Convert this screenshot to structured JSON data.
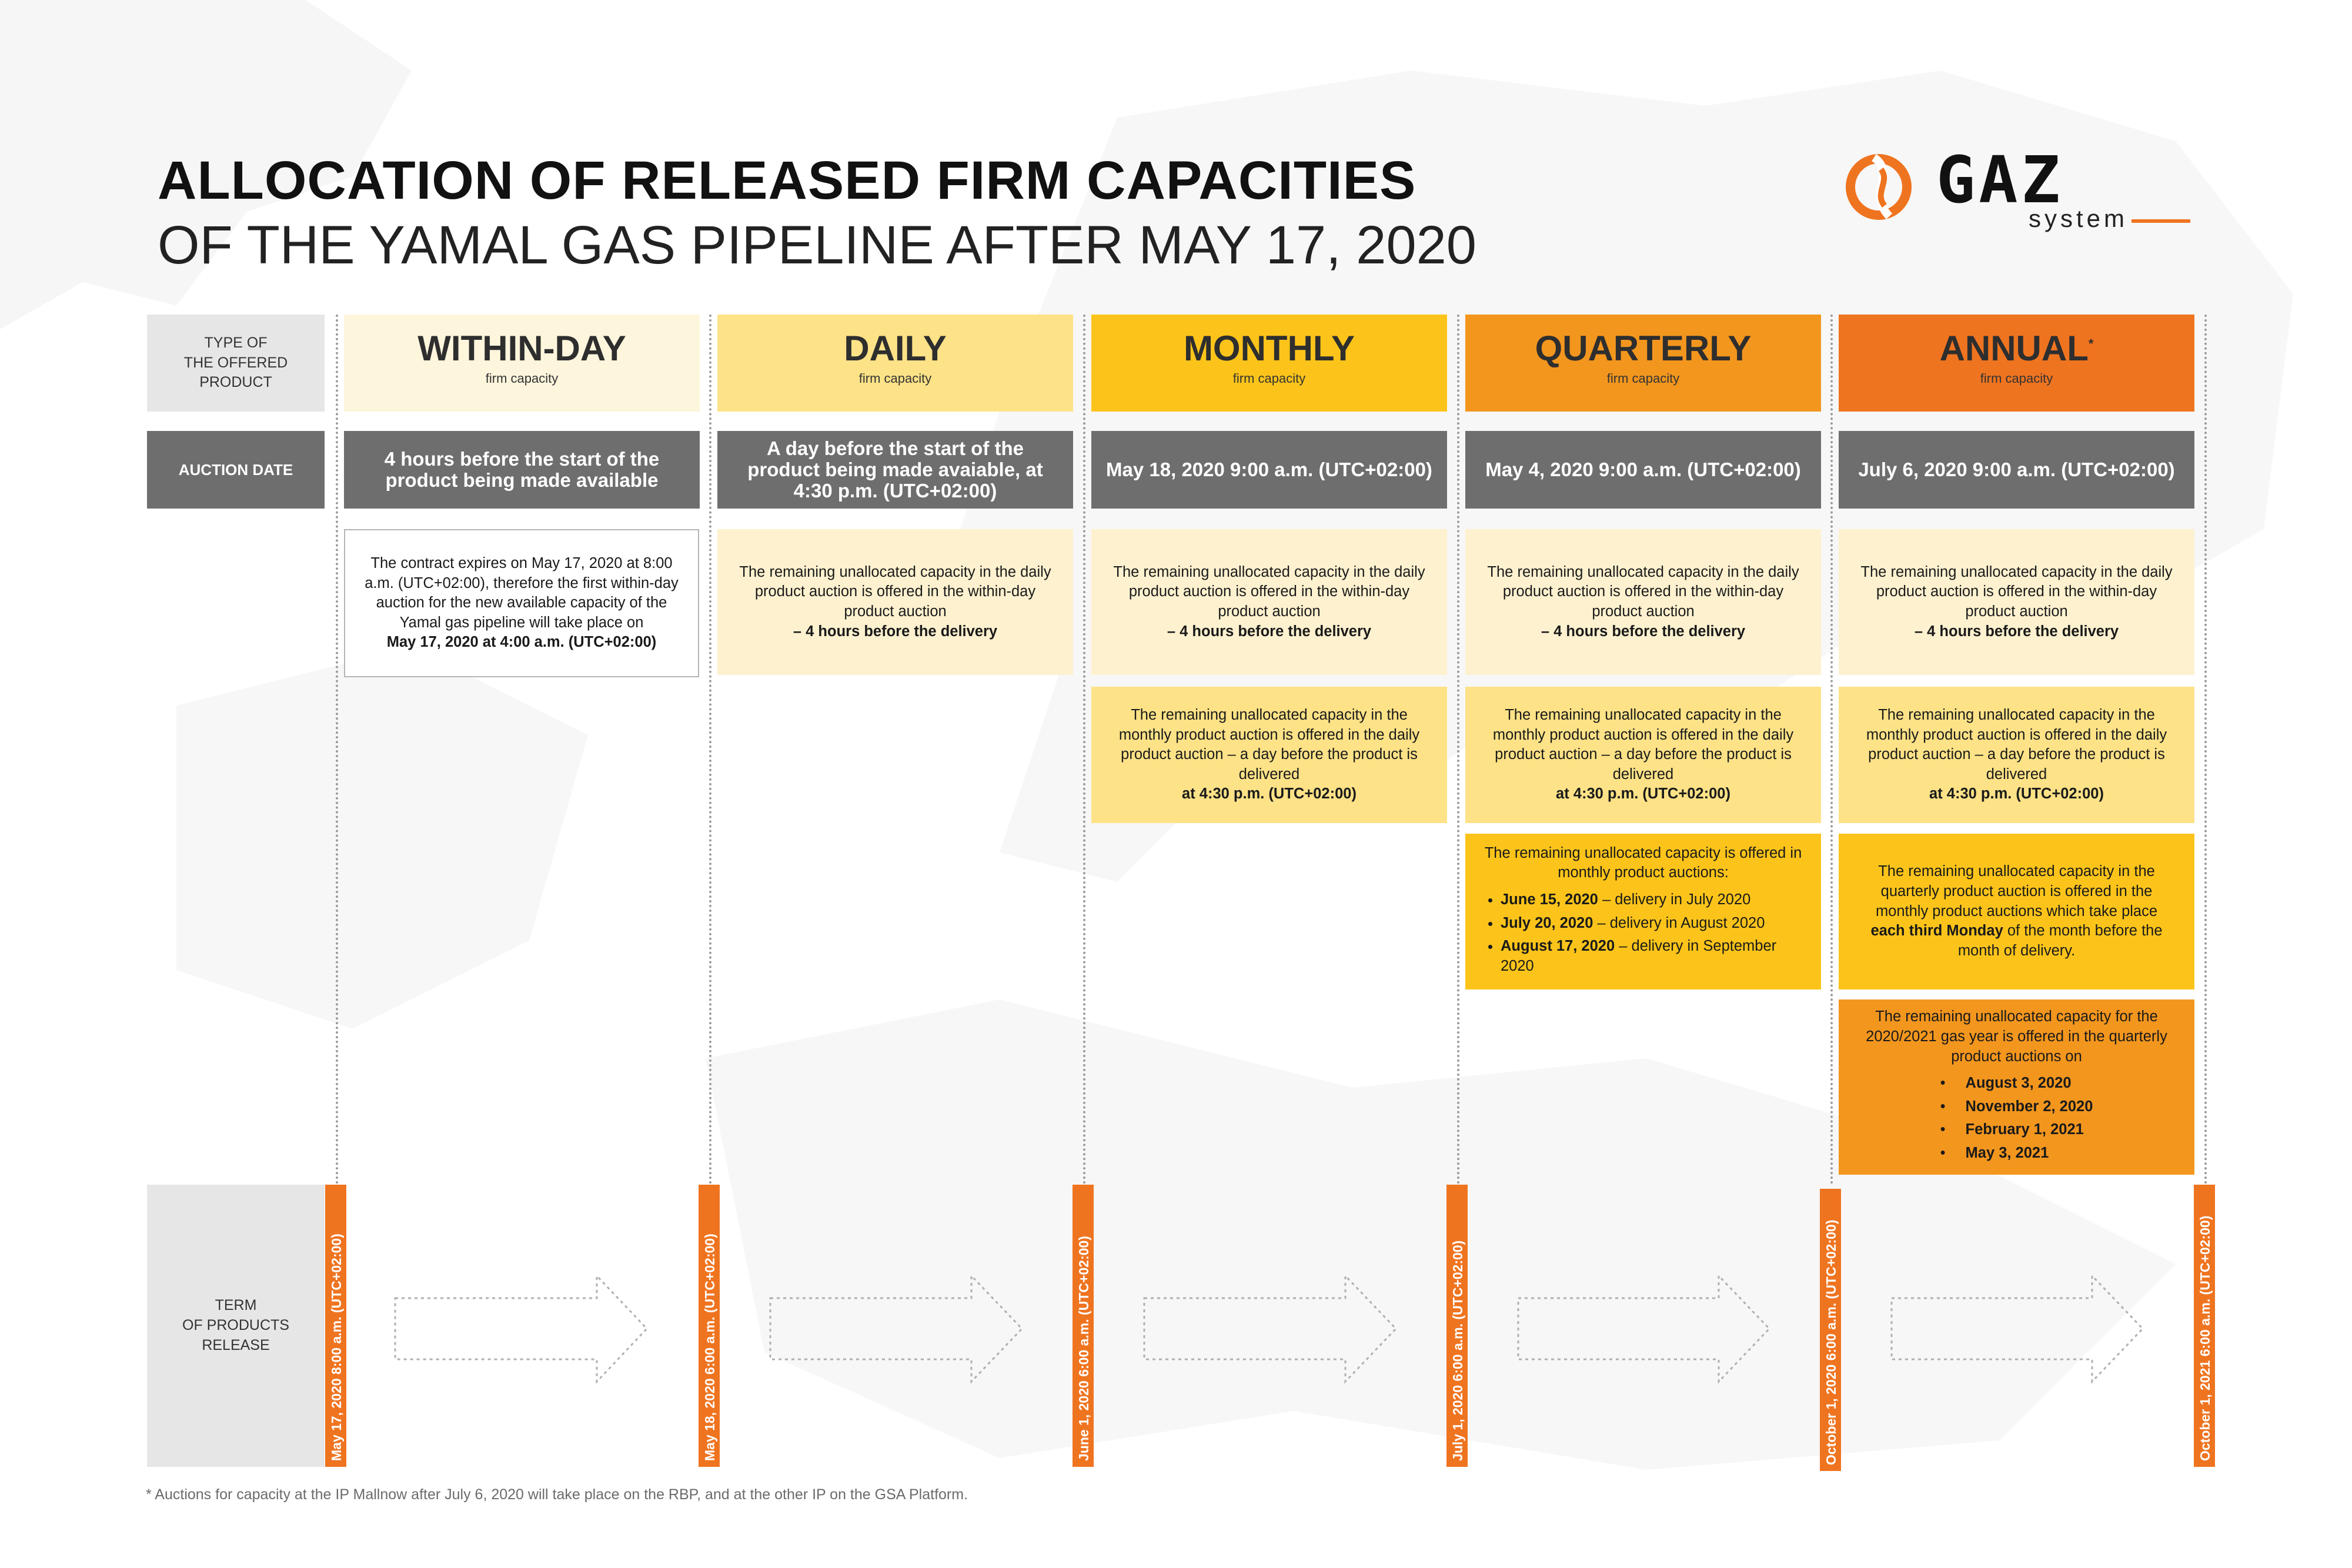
{
  "title": {
    "line1": "ALLOCATION OF RELEASED FIRM CAPACITIES",
    "line2": "OF THE YAMAL GAS PIPELINE AFTER MAY 17, 2020"
  },
  "logo": {
    "word": "GAZ",
    "sub": "system"
  },
  "row_labels": {
    "type": "TYPE OF\nTHE OFFERED\nPRODUCT",
    "auction": "AUCTION DATE",
    "term": "TERM\nOF PRODUCTS\nRELEASE"
  },
  "products": [
    {
      "name": "WITHIN-DAY",
      "sub": "firm capacity",
      "auction": "4 hours before the start of the product being made available"
    },
    {
      "name": "DAILY",
      "sub": "firm capacity",
      "auction": "A day before the start of the product being made avaiable, at 4:30 p.m. (UTC+02:00)"
    },
    {
      "name": "MONTHLY",
      "sub": "firm capacity",
      "auction": "May 18, 2020 9:00 a.m. (UTC+02:00)"
    },
    {
      "name": "QUARTERLY",
      "sub": "firm capacity",
      "auction": "May 4, 2020 9:00 a.m. (UTC+02:00)"
    },
    {
      "name": "ANNUAL",
      "mark": "*",
      "sub": "firm capacity",
      "auction": "July 6, 2020 9:00 a.m. (UTC+02:00)"
    }
  ],
  "cells": {
    "within_day_note": {
      "text": "The contract expires on May 17, 2020 at 8:00 a.m. (UTC+02:00), therefore the first within-day auction for the new available capacity of the Yamal gas pipeline will take place on",
      "bold": "May 17, 2020 at 4:00 a.m. (UTC+02:00)"
    },
    "daily_to_within": {
      "text": "The remaining unallocated capacity in the daily product auction is offered in the within-day product auction",
      "bold": "– 4 hours before the delivery"
    },
    "monthly_to_daily": {
      "text": "The remaining unallocated capacity in the monthly product auction is offered in the daily product auction – a day before the product is delivered",
      "bold": "at 4:30 p.m. (UTC+02:00)"
    },
    "quarterly_to_monthly": {
      "text": "The remaining unallocated capacity is offered in monthly product auctions:",
      "items": [
        {
          "date": "June 15, 2020",
          "rest": " – delivery in July 2020"
        },
        {
          "date": "July 20, 2020",
          "rest": " – delivery in August 2020"
        },
        {
          "date": "August 17, 2020",
          "rest": " – delivery in September 2020"
        }
      ]
    },
    "annual_to_monthly": {
      "text": "The remaining unallocated capacity in the quarterly product auction is offered in the monthly product auctions which take place",
      "bold": "each third Monday",
      "tail": "of the month before the month of delivery."
    },
    "annual_to_quarterly": {
      "text": "The remaining unallocated capacity for the 2020/2021 gas year is offered in the quarterly product auctions on",
      "items": [
        "August 3, 2020",
        "November 2, 2020",
        "February 1, 2021",
        "May 3, 2021"
      ]
    }
  },
  "release_dates": [
    "May 17, 2020 8:00 a.m. (UTC+02:00)",
    "May 18, 2020 6:00 a.m. (UTC+02:00)",
    "June 1, 2020 6:00 a.m. (UTC+02:00)",
    "July 1, 2020 6:00 a.m. (UTC+02:00)",
    "October 1, 2020 6:00 a.m. (UTC+02:00)",
    "October 1, 2021 6:00 a.m. (UTC+02:00)"
  ],
  "colors": {
    "within_day": "#fdf5dc",
    "daily": "#fde287",
    "monthly": "#fcc41a",
    "quarterly": "#f3961e",
    "annual": "#ef7420",
    "gray": "#6e6e6e"
  },
  "footnote": "* Auctions for capacity at the IP Mallnow after July 6, 2020 will take place on the RBP, and at the other IP on the GSA Platform."
}
